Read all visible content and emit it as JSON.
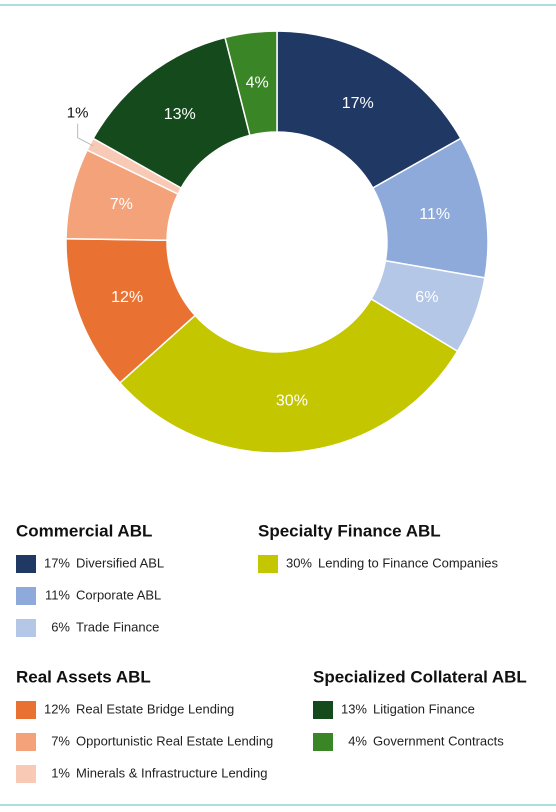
{
  "chart_data": {
    "type": "donut",
    "groups": [
      {
        "name": "Commercial ABL",
        "categories": [
          "Diversified ABL",
          "Corporate ABL",
          "Trade Finance"
        ],
        "values": [
          17,
          11,
          6
        ],
        "value_labels": [
          "17%",
          "11%",
          "6%"
        ],
        "colors": [
          "#1f3864",
          "#8eaadb",
          "#b4c7e7"
        ]
      },
      {
        "name": "Specialty Finance ABL",
        "categories": [
          "Lending to Finance Companies"
        ],
        "values": [
          30
        ],
        "value_labels": [
          "30%"
        ],
        "colors": [
          "#c4c600"
        ]
      },
      {
        "name": "Real Assets ABL",
        "categories": [
          "Real Estate Bridge Lending",
          "Opportunistic Real Estate Lending",
          "Minerals & Infrastructure Lending"
        ],
        "values": [
          12,
          7,
          1
        ],
        "value_labels": [
          "12%",
          "7%",
          "1%"
        ],
        "colors": [
          "#e97132",
          "#f4a27a",
          "#f8c9b5"
        ]
      },
      {
        "name": "Specialized Collateral ABL",
        "categories": [
          "Litigation Finance",
          "Government Contracts"
        ],
        "values": [
          13,
          4
        ],
        "value_labels": [
          "13%",
          "4%"
        ],
        "colors": [
          "#154b1c",
          "#3a8526"
        ]
      }
    ]
  }
}
